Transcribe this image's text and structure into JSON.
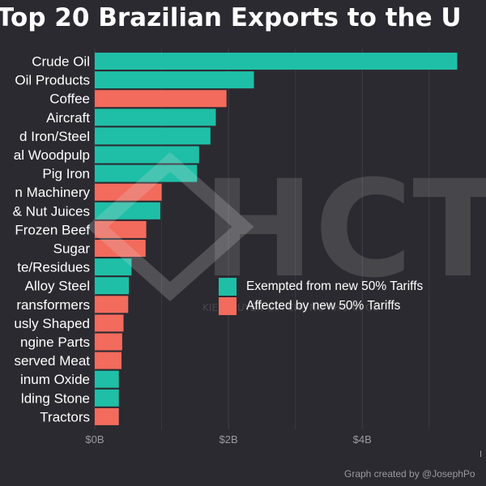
{
  "chart_data": {
    "type": "bar",
    "orientation": "horizontal",
    "title": "Top 20 Brazilian Exports to the U",
    "categories": [
      "Crude Oil",
      "Oil Products",
      "Coffee",
      "Aircraft",
      "d Iron/Steel",
      "al Woodpulp",
      "Pig Iron",
      "n Machinery",
      "& Nut Juices",
      "Frozen Beef",
      "Sugar",
      "te/Residues",
      "Alloy Steel",
      "ransformers",
      "usly Shaped",
      "ngine Parts",
      "served Meat",
      "inum Oxide",
      "lding Stone",
      "Tractors"
    ],
    "values": [
      5.42,
      2.38,
      1.97,
      1.81,
      1.73,
      1.56,
      1.53,
      1.0,
      0.98,
      0.77,
      0.76,
      0.55,
      0.51,
      0.5,
      0.43,
      0.41,
      0.4,
      0.36,
      0.36,
      0.36
    ],
    "status": [
      "exempt",
      "exempt",
      "affected",
      "exempt",
      "exempt",
      "exempt",
      "exempt",
      "affected",
      "exempt",
      "affected",
      "affected",
      "exempt",
      "exempt",
      "affected",
      "affected",
      "affected",
      "affected",
      "exempt",
      "exempt",
      "affected"
    ],
    "xticks": [
      "$0B",
      "$2B",
      "$4B"
    ],
    "xtick_values": [
      0,
      2,
      4
    ],
    "xlim": [
      0,
      5.85
    ],
    "grid": true,
    "legend_position": "center-right",
    "legend": [
      {
        "key": "exempt",
        "label": "Exempted from new 50% Tariffs",
        "color": "#1fbfa7"
      },
      {
        "key": "affected",
        "label": "Affected by new 50% Tariffs",
        "color": "#f26b5d"
      }
    ],
    "credit": "Graph created by @JosephPo",
    "edge_label": "I"
  },
  "watermark": {
    "logo_text": "HCT",
    "sub_text": "KIEN T         UYEN GIA CHỨNG KHOÁN CÔ"
  }
}
